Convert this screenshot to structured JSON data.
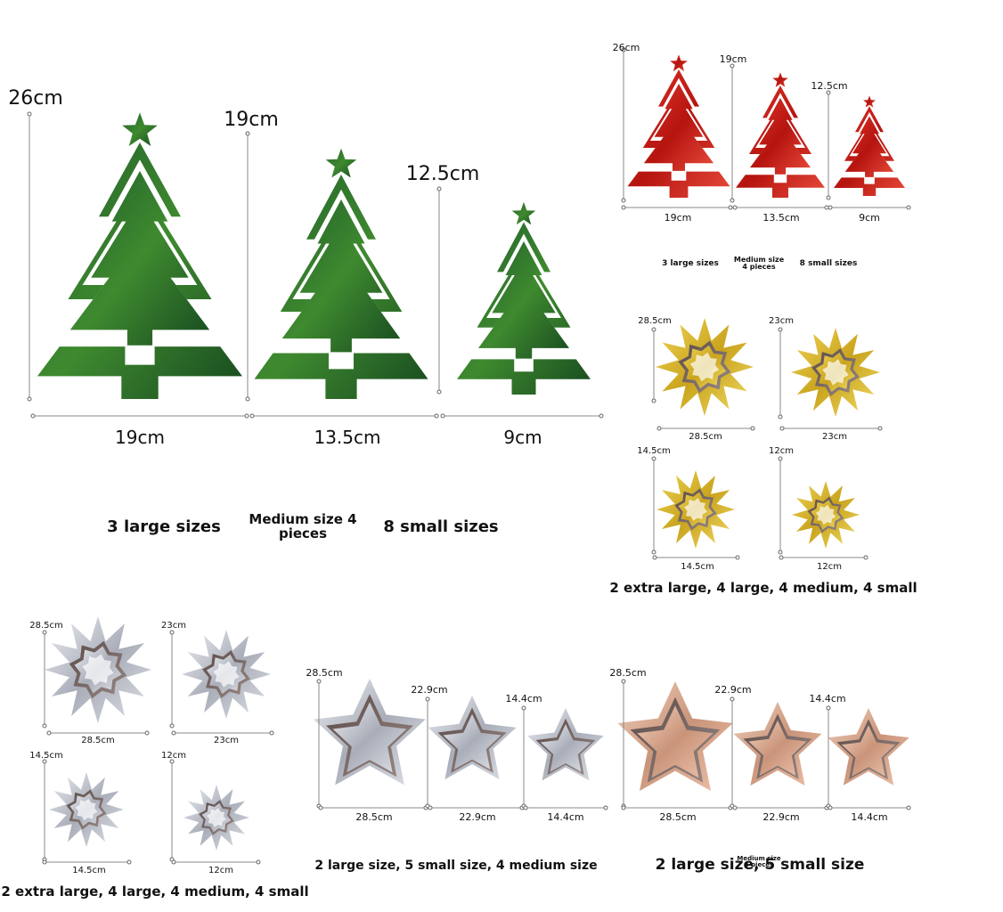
{
  "green_trees": {
    "heights": [
      "26cm",
      "19cm",
      "12.5cm"
    ],
    "widths": [
      "19cm",
      "13.5cm",
      "9cm"
    ],
    "labels": [
      "3 large sizes",
      "Medium size 4 pieces",
      "8 small sizes"
    ]
  },
  "red_trees": {
    "heights": [
      "26cm",
      "19cm",
      "12.5cm"
    ],
    "widths": [
      "19cm",
      "13.5cm",
      "9cm"
    ],
    "labels": [
      "3 large sizes",
      "Medium size 4 pieces",
      "8 small sizes"
    ]
  },
  "gold_snowflakes": {
    "heights": [
      "28.5cm",
      "23cm",
      "14.5cm",
      "12cm"
    ],
    "widths": [
      "28.5cm",
      "23cm",
      "14.5cm",
      "12cm"
    ],
    "caption": "2 extra large, 4 large, 4 medium, 4 small"
  },
  "silver_snowflakes": {
    "heights": [
      "28.5cm",
      "23cm",
      "14.5cm",
      "12cm"
    ],
    "widths": [
      "28.5cm",
      "23cm",
      "14.5cm",
      "12cm"
    ],
    "caption": "2 extra large, 4 large, 4 medium, 4 small"
  },
  "silver_stars": {
    "heights": [
      "28.5cm",
      "22.9cm",
      "14.4cm"
    ],
    "widths": [
      "28.5cm",
      "22.9cm",
      "14.4cm"
    ],
    "caption": "2 large size, 5 small size, 4 medium size"
  },
  "rose_gold_stars": {
    "heights": [
      "28.5cm",
      "22.9cm",
      "14.4cm"
    ],
    "widths": [
      "28.5cm",
      "22.9cm",
      "14.4cm"
    ],
    "caption": "2 large size, 5 small size",
    "overlay": "Medium size 4 pieces"
  }
}
